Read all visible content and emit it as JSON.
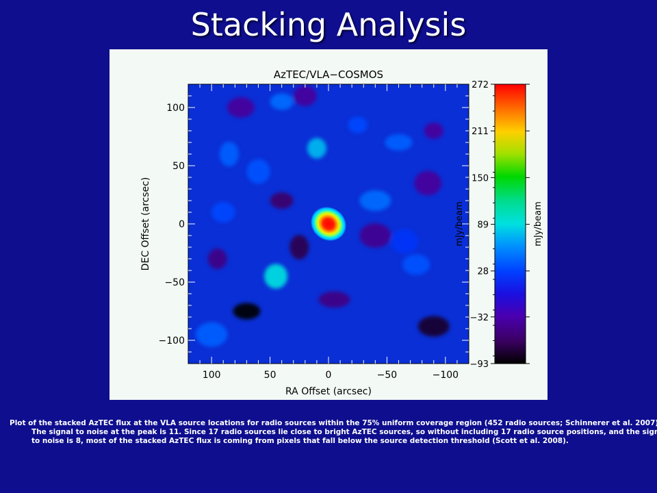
{
  "slide": {
    "title": "Stacking Analysis",
    "caption": "Plot of the stacked AzTEC flux at the VLA source locations for radio sources within the 75% uniform coverage region (452 radio sources; Schinnerer et al. 2007). The signal to noise at the peak is 11. Since 17 radio sources lie close to bright AzTEC sources, so without including 17 radio source positions, and the signal to noise is 8, most of the stacked AzTEC flux is coming from pixels that fall below the source detection threshold (Scott et al. 2008)."
  },
  "chart_data": {
    "type": "heatmap",
    "title": "AzTEC/VLA−COSMOS",
    "xlabel": "RA Offset (arcsec)",
    "ylabel": "DEC Offset (arcsec)",
    "xlim": [
      120,
      -120
    ],
    "ylim": [
      -120,
      120
    ],
    "x_ticks": [
      100,
      50,
      0,
      -50,
      -100
    ],
    "y_ticks": [
      100,
      50,
      0,
      -50,
      -100
    ],
    "colorbar": {
      "label": "mJy/beam",
      "range": [
        -93,
        272
      ],
      "ticks": [
        272,
        211,
        150,
        89,
        28,
        -32,
        -93
      ],
      "colormap": "rainbow"
    },
    "colors": {
      "map_base": "#0a2fd6",
      "peak_core": "#ff0000",
      "figure_background": "#f3f9f5",
      "slide_background": "#0e0e8e"
    },
    "peak": {
      "x": 0,
      "y": 0,
      "value": 272
    },
    "features": [
      {
        "x": 10,
        "y": 65,
        "value": 75
      },
      {
        "x": 45,
        "y": -45,
        "value": 90
      },
      {
        "x": 70,
        "y": -75,
        "value": -93
      },
      {
        "x": -90,
        "y": -88,
        "value": -80
      },
      {
        "x": 25,
        "y": -20,
        "value": -70
      },
      {
        "x": 40,
        "y": 20,
        "value": -60
      },
      {
        "x": 75,
        "y": 100,
        "value": -40
      },
      {
        "x": -40,
        "y": -10,
        "value": -45
      },
      {
        "x": -90,
        "y": 80,
        "value": -40
      },
      {
        "x": 20,
        "y": 110,
        "value": -40
      },
      {
        "x": -85,
        "y": 35,
        "value": -40
      },
      {
        "x": -5,
        "y": -65,
        "value": -50
      },
      {
        "x": 95,
        "y": -30,
        "value": -50
      },
      {
        "x": 60,
        "y": 45,
        "value": 35
      },
      {
        "x": -60,
        "y": 70,
        "value": 40
      },
      {
        "x": -40,
        "y": 20,
        "value": 45
      },
      {
        "x": 85,
        "y": 60,
        "value": 40
      },
      {
        "x": 40,
        "y": 105,
        "value": 45
      },
      {
        "x": -75,
        "y": -35,
        "value": 35
      },
      {
        "x": 100,
        "y": -95,
        "value": 40
      },
      {
        "x": -25,
        "y": 85,
        "value": 30
      },
      {
        "x": 90,
        "y": 10,
        "value": 30
      },
      {
        "x": -65,
        "y": -15,
        "value": 20
      }
    ]
  }
}
